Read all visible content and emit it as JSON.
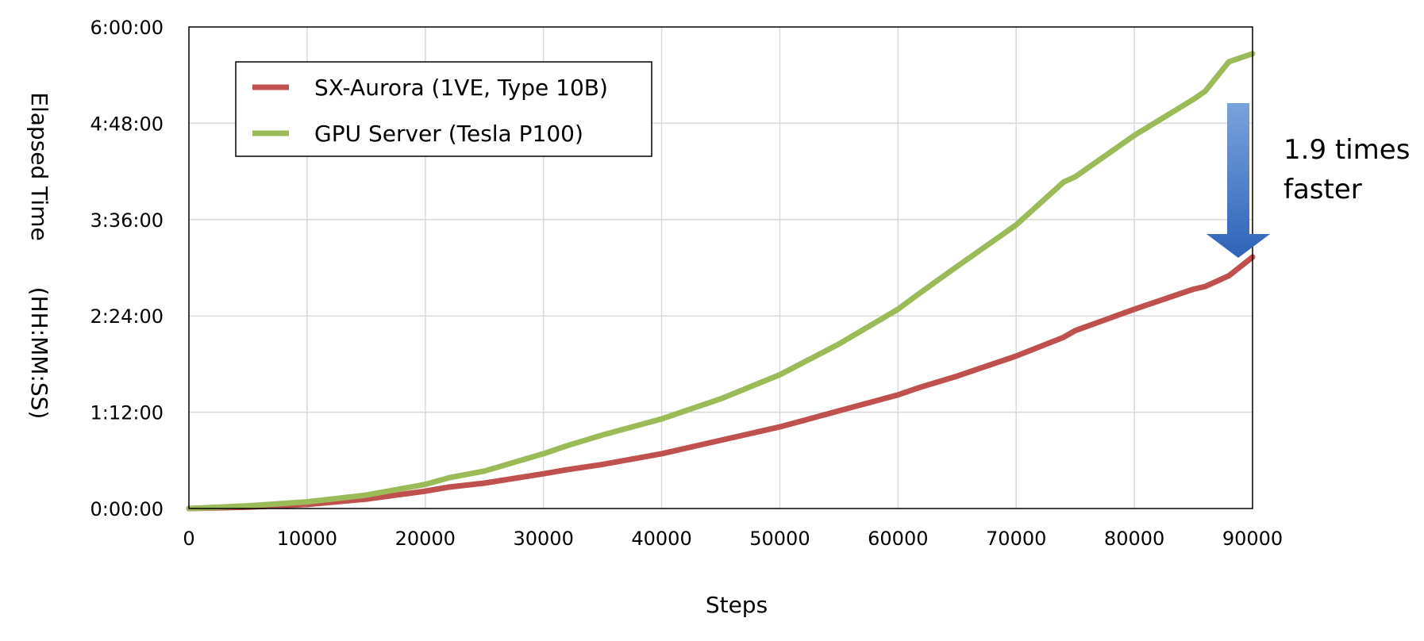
{
  "chart_data": {
    "type": "line",
    "xlabel": "Steps",
    "ylabel": "Elapsed Time",
    "ylabel_units": "(HH:MM:SS)",
    "xlim": [
      0,
      90000
    ],
    "ylim": [
      0,
      21600
    ],
    "x_ticks": [
      "0",
      "10000",
      "20000",
      "30000",
      "40000",
      "50000",
      "60000",
      "70000",
      "80000",
      "90000"
    ],
    "y_ticks": [
      "0:00:00",
      "1:12:00",
      "2:24:00",
      "3:36:00",
      "4:48:00",
      "6:00:00"
    ],
    "grid": true,
    "legend_position": "top-left",
    "x": [
      0,
      5000,
      10000,
      15000,
      20000,
      22000,
      25000,
      30000,
      32000,
      35000,
      40000,
      45000,
      50000,
      55000,
      60000,
      62000,
      65000,
      70000,
      74000,
      75000,
      80000,
      85000,
      86000,
      88000,
      90000
    ],
    "series": [
      {
        "name": "SX-Aurora (1VE, Type 10B)",
        "color": "#c0504d",
        "values": [
          0,
          60,
          180,
          420,
          780,
          960,
          1140,
          1560,
          1740,
          1980,
          2460,
          3060,
          3660,
          4380,
          5100,
          5460,
          5940,
          6840,
          7680,
          7980,
          8940,
          9840,
          9960,
          10440,
          11280
        ]
      },
      {
        "name": "GPU Server (Tesla P100)",
        "color": "#9bbb59",
        "values": [
          0,
          120,
          300,
          600,
          1080,
          1380,
          1680,
          2460,
          2820,
          3300,
          4020,
          4920,
          6000,
          7380,
          8940,
          9720,
          10860,
          12720,
          14640,
          14880,
          16740,
          18360,
          18720,
          20040,
          20400
        ]
      }
    ],
    "annotation": {
      "line1": "1.9 times",
      "line2": "faster",
      "arrow_color": "#2e63b8"
    }
  }
}
